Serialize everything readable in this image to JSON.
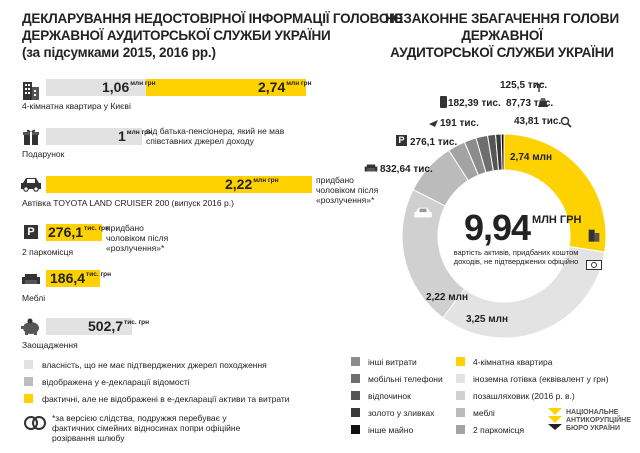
{
  "left": {
    "title_lines": [
      "ДЕКЛАРУВАННЯ НЕДОСТОВІРНОЇ ІНФОРМАЦІЇ ГОЛОВОЮ",
      "ДЕРЖАВНОЇ АУДИТОРСЬКОЇ СЛУЖБИ УКРАЇНИ",
      "(за підсумками 2015, 2016 рр.)"
    ],
    "items": {
      "apartment": {
        "caption": "4-кімнатна квартира у Києві",
        "v1": "1,06",
        "u1": "млн грн",
        "v2": "2,74",
        "u2": "млн грн"
      },
      "gift": {
        "caption": "Подарунок",
        "v1": "1",
        "u1": "млн грн",
        "note": "від батька-пенсіонера, який не мав співставних джерел доходу"
      },
      "car": {
        "caption": "Автівка TOYOTA LAND CRUISER 200 (випуск 2016 р.)",
        "v1": "2,22",
        "u1": "млн грн",
        "note": "придбано чоловіком після «розлучення»*"
      },
      "parking": {
        "caption": "2 паркомісця",
        "v1": "276,1",
        "u1": "тис. грн",
        "note": "придбано чоловіком після «розлучення»*"
      },
      "furniture": {
        "caption": "Меблі",
        "v1": "186,4",
        "u1": "тис. грн"
      },
      "savings": {
        "caption": "Заощадження",
        "v1": "502,7",
        "u1": "тис. грн"
      }
    },
    "legend": [
      "власність, що не має підтверджених джерел походження",
      "відображена у е-декларації відомості",
      "фактичні, але не відображені в е-декларації активи та витрати"
    ],
    "footnote": "*за версією слідства, подружжя перебуває у фактичних сімейних відносинах попри офіційне розірвання шлюбу"
  },
  "right": {
    "title_lines": [
      "НЕЗАКОННЕ ЗБАГАЧЕННЯ ГОЛОВИ ДЕРЖАВНОЇ",
      "АУДИТОРСЬКОЇ СЛУЖБИ УКРАЇНИ"
    ],
    "center_value": "9,94",
    "center_unit": "МЛН ГРН",
    "center_text": "вартість активів, придбаних коштом доходів, не підтверджених офіційно",
    "legend_left": [
      "інші витрати",
      "мобільні телефони",
      "відпочинок",
      "золото у зливках",
      "інше майно"
    ],
    "legend_right": [
      "4-кімнатна квартира",
      "іноземна готівка (еквівалент у грн)",
      "позашляховик (2016 р. в.)",
      "меблі",
      "2 паркомісця"
    ],
    "logo": [
      "НАЦІОНАЛЬНЕ",
      "АНТИКОРУПЦІЙНЕ",
      "БЮРО УКРАЇНИ"
    ]
  },
  "chart_data": {
    "type": "pie",
    "donut": true,
    "unit": "грн",
    "slices": [
      {
        "label": "4-кімнатна квартира",
        "value": "2,74 млн",
        "amount": 2740,
        "color": "#fed100"
      },
      {
        "label": "іноземна готівка (еквівалент у грн)",
        "value": "3,25 млн",
        "amount": 3250,
        "color": "#e3e3e3"
      },
      {
        "label": "позашляховик (2016 р. в.)",
        "value": "2,22 млн",
        "amount": 2220,
        "color": "#d0d0d0"
      },
      {
        "label": "меблі",
        "value": "832,64 тис.",
        "amount": 832.64,
        "color": "#bbbbbb"
      },
      {
        "label": "2 паркомісця",
        "value": "276,1 тис.",
        "amount": 276.1,
        "color": "#a3a3a3"
      },
      {
        "label": "інші витрати",
        "value": "191 тис.",
        "amount": 191,
        "color": "#8c8c8c"
      },
      {
        "label": "мобільні телефони",
        "value": "182,39 тис.",
        "amount": 182.39,
        "color": "#6e6e6e"
      },
      {
        "label": "відпочинок",
        "value": "125,5 тис.",
        "amount": 125.5,
        "color": "#555555"
      },
      {
        "label": "золото у зливках",
        "value": "87,73 тис.",
        "amount": 87.73,
        "color": "#3a3a3a"
      },
      {
        "label": "інше майно",
        "value": "43,81 тис.",
        "amount": 43.81,
        "color": "#111111"
      }
    ]
  },
  "colors": {
    "accent": "#fed100",
    "dark": "#222222",
    "bar_light": "#e2e2e2",
    "bar_mid": "#bdbdbd"
  }
}
